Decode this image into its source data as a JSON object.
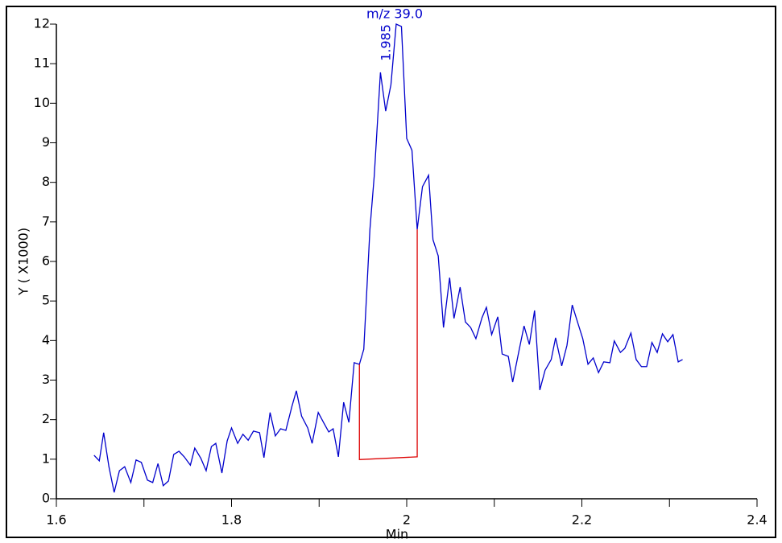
{
  "chart_data": {
    "type": "line",
    "annotations": [
      "m/z  39.0",
      "1.985"
    ],
    "xlabel": "Min",
    "ylabel": "Y ( X1000)",
    "xlim": [
      1.6,
      2.4
    ],
    "xticks": [
      1.6,
      1.8,
      2,
      2.2,
      2.4
    ],
    "xminorticks": [
      1.7,
      1.9,
      2.1,
      2.3
    ],
    "ylim": [
      0,
      12
    ],
    "yticks": [
      0,
      1,
      2,
      3,
      4,
      5,
      6,
      7,
      8,
      9,
      10,
      11,
      12
    ],
    "x": [
      1.643,
      1.649,
      1.654,
      1.66,
      1.666,
      1.672,
      1.678,
      1.685,
      1.691,
      1.697,
      1.704,
      1.71,
      1.716,
      1.722,
      1.728,
      1.734,
      1.74,
      1.746,
      1.753,
      1.758,
      1.765,
      1.771,
      1.777,
      1.782,
      1.789,
      1.795,
      1.8,
      1.807,
      1.813,
      1.819,
      1.825,
      1.832,
      1.837,
      1.844,
      1.85,
      1.856,
      1.862,
      1.869,
      1.874,
      1.88,
      1.887,
      1.892,
      1.899,
      1.905,
      1.911,
      1.916,
      1.922,
      1.928,
      1.934,
      1.94,
      1.946,
      1.951,
      1.958,
      1.963,
      1.97,
      1.976,
      1.982,
      1.988,
      1.994,
      2.0,
      2.006,
      2.012,
      2.018,
      2.025,
      2.03,
      2.036,
      2.042,
      2.049,
      2.054,
      2.061,
      2.067,
      2.073,
      2.079,
      2.086,
      2.091,
      2.097,
      2.104,
      2.109,
      2.116,
      2.121,
      2.128,
      2.134,
      2.14,
      2.146,
      2.152,
      2.158,
      2.165,
      2.17,
      2.177,
      2.183,
      2.189,
      2.195,
      2.201,
      2.207,
      2.213,
      2.219,
      2.225,
      2.232,
      2.237,
      2.244,
      2.249,
      2.256,
      2.262,
      2.268,
      2.274,
      2.28,
      2.286,
      2.292,
      2.298,
      2.304,
      2.31,
      2.315
    ],
    "series": [
      {
        "color": "#0000cc",
        "values": [
          1.1,
          0.96,
          1.67,
          0.81,
          0.16,
          0.71,
          0.81,
          0.41,
          0.98,
          0.92,
          0.47,
          0.41,
          0.89,
          0.33,
          0.45,
          1.12,
          1.2,
          1.06,
          0.85,
          1.28,
          1.02,
          0.71,
          1.32,
          1.4,
          0.65,
          1.46,
          1.79,
          1.4,
          1.63,
          1.48,
          1.71,
          1.67,
          1.04,
          2.18,
          1.59,
          1.77,
          1.73,
          2.34,
          2.73,
          2.09,
          1.79,
          1.4,
          2.18,
          1.93,
          1.69,
          1.77,
          1.06,
          2.44,
          1.93,
          3.44,
          3.4,
          3.78,
          6.81,
          8.18,
          10.78,
          9.8,
          10.47,
          12.0,
          11.94,
          9.11,
          8.81,
          6.81,
          7.89,
          8.18,
          6.55,
          6.14,
          4.33,
          5.59,
          4.56,
          5.35,
          4.47,
          4.33,
          4.05,
          4.58,
          4.84,
          4.15,
          4.6,
          3.66,
          3.6,
          2.95,
          3.72,
          4.37,
          3.9,
          4.76,
          2.75,
          3.25,
          3.52,
          4.07,
          3.36,
          3.88,
          4.9,
          4.47,
          4.05,
          3.4,
          3.56,
          3.19,
          3.46,
          3.44,
          3.99,
          3.7,
          3.8,
          4.19,
          3.52,
          3.34,
          3.34,
          3.95,
          3.7,
          4.17,
          3.97,
          4.15,
          3.46,
          3.52
        ]
      }
    ],
    "baseline": {
      "color": "#dd0000",
      "x": [
        1.946,
        2.012
      ],
      "y": [
        0.99,
        1.06
      ],
      "top": [
        3.4,
        6.81
      ]
    }
  }
}
